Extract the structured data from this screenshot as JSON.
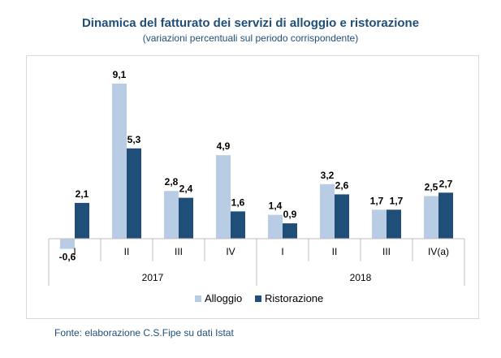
{
  "chart_data": {
    "type": "bar",
    "title": "Dinamica del fatturato dei servizi di alloggio e ristorazione",
    "subtitle": "(variazioni percentuali sul periodo corrispondente)",
    "categories": [
      "I",
      "II",
      "III",
      "IV",
      "I",
      "II",
      "III",
      "IV(a)"
    ],
    "groups": [
      {
        "label": "2017",
        "span": [
          0,
          3
        ]
      },
      {
        "label": "2018",
        "span": [
          4,
          7
        ]
      }
    ],
    "series": [
      {
        "name": "Alloggio",
        "color": "#b8cce4",
        "values": [
          -0.6,
          9.1,
          2.8,
          4.9,
          1.4,
          3.2,
          1.7,
          2.5
        ],
        "labels": [
          "-0,6",
          "9,1",
          "2,8",
          "4,9",
          "1,4",
          "3,2",
          "1,7",
          "2,5"
        ]
      },
      {
        "name": "Ristorazione",
        "color": "#1f4e79",
        "values": [
          2.1,
          5.3,
          2.4,
          1.6,
          0.9,
          2.6,
          1.7,
          2.7
        ],
        "labels": [
          "2,1",
          "5,3",
          "2,4",
          "1,6",
          "0,9",
          "2,6",
          "1,7",
          "2,7"
        ]
      }
    ],
    "ylim": [
      -0.6,
      9.1
    ],
    "xlabel": "",
    "ylabel": "",
    "legend_position": "bottom",
    "source": "Fonte: elaborazione C.S.Fipe su dati Istat"
  }
}
